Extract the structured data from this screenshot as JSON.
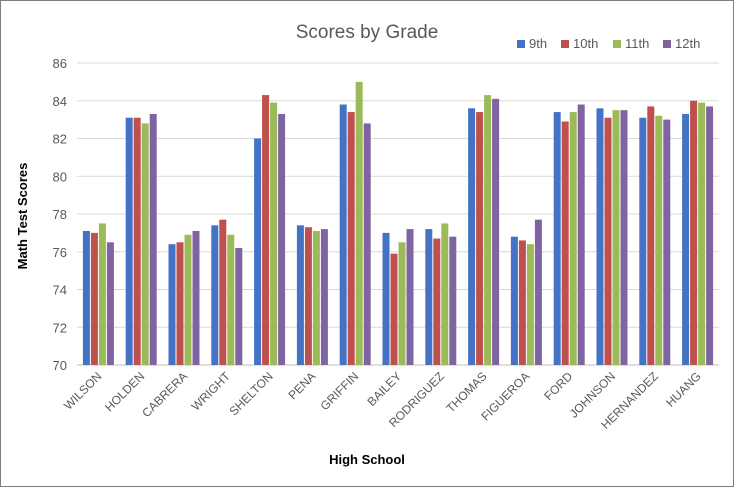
{
  "chart_data": {
    "type": "bar",
    "title": "Scores by Grade",
    "xlabel": "High School",
    "ylabel": "Math Test Scores",
    "ylim": [
      70,
      86
    ],
    "yticks": [
      70,
      72,
      74,
      76,
      78,
      80,
      82,
      84,
      86
    ],
    "grid": true,
    "legend_position": "top-right",
    "categories": [
      "WILSON",
      "HOLDEN",
      "CABRERA",
      "WRIGHT",
      "SHELTON",
      "PENA",
      "GRIFFIN",
      "BAILEY",
      "RODRIGUEZ",
      "THOMAS",
      "FIGUEROA",
      "FORD",
      "JOHNSON",
      "HERNANDEZ",
      "HUANG"
    ],
    "series": [
      {
        "name": "9th",
        "color": "#4472c4",
        "values": [
          77.1,
          83.1,
          76.4,
          77.4,
          82.0,
          77.4,
          83.8,
          77.0,
          77.2,
          83.6,
          76.8,
          83.4,
          83.6,
          83.1,
          83.3
        ]
      },
      {
        "name": "10th",
        "color": "#c0504d",
        "values": [
          77.0,
          83.1,
          76.5,
          77.7,
          84.3,
          77.3,
          83.4,
          75.9,
          76.7,
          83.4,
          76.6,
          82.9,
          83.1,
          83.7,
          84.0
        ]
      },
      {
        "name": "11th",
        "color": "#9bbb59",
        "values": [
          77.5,
          82.8,
          76.9,
          76.9,
          83.9,
          77.1,
          85.0,
          76.5,
          77.5,
          84.3,
          76.4,
          83.4,
          83.5,
          83.2,
          83.9
        ]
      },
      {
        "name": "12th",
        "color": "#8064a2",
        "values": [
          76.5,
          83.3,
          77.1,
          76.2,
          83.3,
          77.2,
          82.8,
          77.2,
          76.8,
          84.1,
          77.7,
          83.8,
          83.5,
          83.0,
          83.7
        ]
      }
    ]
  }
}
